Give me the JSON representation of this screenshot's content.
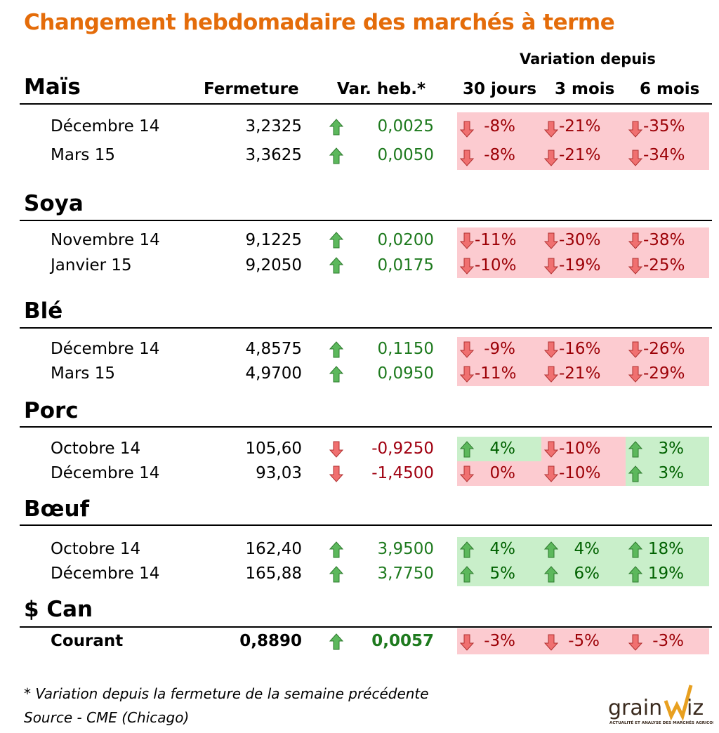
{
  "title": "Changement hebdomadaire des marchés à terme",
  "columns": {
    "variation_group": "Variation depuis",
    "fermeture": "Fermeture",
    "var_heb": "Var. heb.*",
    "d30": "30 jours",
    "m3": "3 mois",
    "m6": "6 mois"
  },
  "colors": {
    "title": "#e46c0a",
    "up_bg": "#c9efca",
    "down_bg": "#fccbd0",
    "up_text": "#006100",
    "down_text": "#9c0006"
  },
  "sections": [
    {
      "name": "Maïs",
      "rows": [
        {
          "contract": "Décembre 14",
          "close": "3,2325",
          "dir": "up",
          "change": "0,0025",
          "pcts": [
            {
              "v": "-8%",
              "d": "down"
            },
            {
              "v": "-21%",
              "d": "down"
            },
            {
              "v": "-35%",
              "d": "down"
            }
          ]
        },
        {
          "contract": "Mars 15",
          "close": "3,3625",
          "dir": "up",
          "change": "0,0050",
          "pcts": [
            {
              "v": "-8%",
              "d": "down"
            },
            {
              "v": "-21%",
              "d": "down"
            },
            {
              "v": "-34%",
              "d": "down"
            }
          ]
        }
      ]
    },
    {
      "name": "Soya",
      "rows": [
        {
          "contract": "Novembre 14",
          "close": "9,1225",
          "dir": "up",
          "change": "0,0200",
          "pcts": [
            {
              "v": "-11%",
              "d": "down"
            },
            {
              "v": "-30%",
              "d": "down"
            },
            {
              "v": "-38%",
              "d": "down"
            }
          ]
        },
        {
          "contract": "Janvier 15",
          "close": "9,2050",
          "dir": "up",
          "change": "0,0175",
          "pcts": [
            {
              "v": "-10%",
              "d": "down"
            },
            {
              "v": "-19%",
              "d": "down"
            },
            {
              "v": "-25%",
              "d": "down"
            }
          ]
        }
      ]
    },
    {
      "name": "Blé",
      "rows": [
        {
          "contract": "Décembre 14",
          "close": "4,8575",
          "dir": "up",
          "change": "0,1150",
          "pcts": [
            {
              "v": "-9%",
              "d": "down"
            },
            {
              "v": "-16%",
              "d": "down"
            },
            {
              "v": "-26%",
              "d": "down"
            }
          ]
        },
        {
          "contract": "Mars 15",
          "close": "4,9700",
          "dir": "up",
          "change": "0,0950",
          "pcts": [
            {
              "v": "-11%",
              "d": "down"
            },
            {
              "v": "-21%",
              "d": "down"
            },
            {
              "v": "-29%",
              "d": "down"
            }
          ]
        }
      ]
    },
    {
      "name": "Porc",
      "rows": [
        {
          "contract": "Octobre 14",
          "close": "105,60",
          "dir": "down",
          "change": "-0,9250",
          "pcts": [
            {
              "v": "4%",
              "d": "up"
            },
            {
              "v": "-10%",
              "d": "down"
            },
            {
              "v": "3%",
              "d": "up"
            }
          ]
        },
        {
          "contract": "Décembre 14",
          "close": "93,03",
          "dir": "down",
          "change": "-1,4500",
          "pcts": [
            {
              "v": "0%",
              "d": "down"
            },
            {
              "v": "-10%",
              "d": "down"
            },
            {
              "v": "3%",
              "d": "up"
            }
          ]
        }
      ]
    },
    {
      "name": "Bœuf",
      "rows": [
        {
          "contract": "Octobre 14",
          "close": "162,40",
          "dir": "up",
          "change": "3,9500",
          "pcts": [
            {
              "v": "4%",
              "d": "up"
            },
            {
              "v": "4%",
              "d": "up"
            },
            {
              "v": "18%",
              "d": "up"
            }
          ]
        },
        {
          "contract": "Décembre 14",
          "close": "165,88",
          "dir": "up",
          "change": "3,7750",
          "pcts": [
            {
              "v": "5%",
              "d": "up"
            },
            {
              "v": "6%",
              "d": "up"
            },
            {
              "v": "19%",
              "d": "up"
            }
          ]
        }
      ]
    },
    {
      "name": "$ Can",
      "rows": [
        {
          "contract": "Courant",
          "close": "0,8890",
          "dir": "up",
          "change": "0,0057",
          "bold": true,
          "pcts": [
            {
              "v": "-3%",
              "d": "down"
            },
            {
              "v": "-5%",
              "d": "down"
            },
            {
              "v": "-3%",
              "d": "down"
            }
          ]
        }
      ]
    }
  ],
  "footnote": "* Variation depuis la fermeture de la semaine précédente",
  "source": "Source - CME (Chicago)",
  "logo": {
    "name": "grainwiz",
    "tagline": "ACTUALITÉ ET ANALYSE DES MARCHÉS AGRICOLES"
  }
}
